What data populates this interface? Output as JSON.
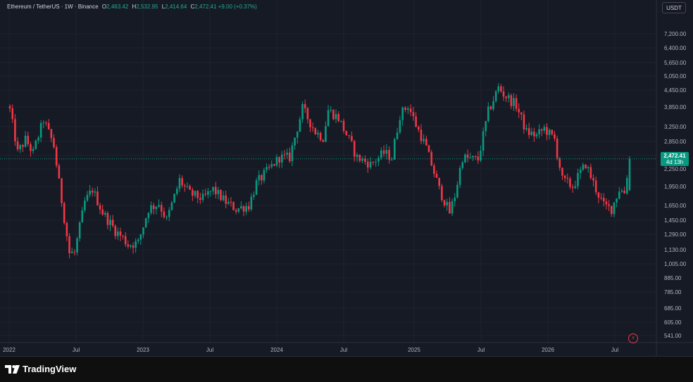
{
  "header": {
    "symbol_title": "Ethereum / TetherUS · 1W · Binance",
    "ohlc": [
      {
        "label": "O",
        "value": "2,463.42"
      },
      {
        "label": "H",
        "value": "2,532.95"
      },
      {
        "label": "L",
        "value": "2,414.64"
      },
      {
        "label": "C",
        "value": "2,472.41"
      }
    ],
    "change": "+9.00 (+0.37%)",
    "currency_button": "USDT"
  },
  "last_price": {
    "value": "2,472.41",
    "countdown": "4d 13h"
  },
  "footer": {
    "brand": "TradingView"
  },
  "icons": {
    "logo": "tradingview-logo-icon",
    "alert": "alert-lightning-icon"
  },
  "colors": {
    "background": "#161a25",
    "up": "#089981",
    "down": "#f23645",
    "grid": "#1e222d",
    "text": "#b2b5be"
  },
  "chart_data": {
    "type": "candlestick",
    "scale": "log",
    "interval": "1W",
    "y_ticks": [
      "7,200.00",
      "6,400.00",
      "5,650.00",
      "5,050.00",
      "4,450.00",
      "3,850.00",
      "3,250.00",
      "2,850.00",
      "2,550.00",
      "2,250.00",
      "1,950.00",
      "1,650.00",
      "1,450.00",
      "1,290.00",
      "1,130.00",
      "1,005.00",
      "885.00",
      "785.00",
      "685.00",
      "605.00",
      "541.00"
    ],
    "x_ticks": [
      "2022",
      "Jul",
      "2023",
      "Jul",
      "2024",
      "Jul",
      "2025",
      "Jul",
      "2026",
      "Jul"
    ],
    "ylim": [
      520,
      8000
    ],
    "grid": true,
    "close_path": [
      [
        "2022-01-03",
        3750
      ],
      [
        "2022-01-24",
        2600
      ],
      [
        "2022-02-14",
        2900
      ],
      [
        "2022-03-07",
        2600
      ],
      [
        "2022-04-04",
        3450
      ],
      [
        "2022-05-02",
        2750
      ],
      [
        "2022-05-16",
        2000
      ],
      [
        "2022-06-13",
        1100
      ],
      [
        "2022-06-27",
        1100
      ],
      [
        "2022-07-25",
        1700
      ],
      [
        "2022-08-15",
        1900
      ],
      [
        "2022-09-12",
        1550
      ],
      [
        "2022-10-17",
        1330
      ],
      [
        "2022-11-07",
        1250
      ],
      [
        "2022-11-21",
        1180
      ],
      [
        "2022-12-19",
        1200
      ],
      [
        "2023-01-16",
        1600
      ],
      [
        "2023-02-13",
        1680
      ],
      [
        "2023-03-06",
        1450
      ],
      [
        "2023-04-10",
        2050
      ],
      [
        "2023-05-08",
        1830
      ],
      [
        "2023-06-12",
        1750
      ],
      [
        "2023-07-10",
        1900
      ],
      [
        "2023-08-14",
        1700
      ],
      [
        "2023-09-11",
        1600
      ],
      [
        "2023-10-16",
        1650
      ],
      [
        "2023-11-06",
        2000
      ],
      [
        "2023-12-11",
        2250
      ],
      [
        "2024-01-08",
        2500
      ],
      [
        "2024-02-05",
        2500
      ],
      [
        "2024-03-11",
        3800
      ],
      [
        "2024-04-15",
        3100
      ],
      [
        "2024-05-06",
        2950
      ],
      [
        "2024-05-20",
        3750
      ],
      [
        "2024-06-17",
        3500
      ],
      [
        "2024-08-05",
        2500
      ],
      [
        "2024-09-09",
        2350
      ],
      [
        "2024-10-14",
        2600
      ],
      [
        "2024-11-04",
        2500
      ],
      [
        "2024-11-25",
        3600
      ],
      [
        "2024-12-16",
        3900
      ],
      [
        "2025-01-06",
        3300
      ],
      [
        "2025-02-03",
        2700
      ],
      [
        "2025-03-10",
        1900
      ],
      [
        "2025-04-07",
        1550
      ],
      [
        "2025-04-21",
        1800
      ],
      [
        "2025-05-12",
        2500
      ],
      [
        "2025-06-23",
        2450
      ],
      [
        "2025-07-21",
        3700
      ],
      [
        "2025-08-18",
        4550
      ],
      [
        "2025-09-01",
        4300
      ],
      [
        "2025-10-06",
        3900
      ],
      [
        "2025-11-03",
        3100
      ],
      [
        "2025-12-01",
        3000
      ],
      [
        "2025-12-22",
        3200
      ],
      [
        "2026-01-19",
        2900
      ],
      [
        "2026-02-09",
        2050
      ],
      [
        "2026-03-09",
        1950
      ],
      [
        "2026-04-13",
        2350
      ],
      [
        "2026-05-11",
        1900
      ],
      [
        "2026-06-01",
        1650
      ],
      [
        "2026-06-22",
        1600
      ],
      [
        "2026-07-13",
        1900
      ],
      [
        "2026-07-27",
        1850
      ],
      [
        "2026-08-10",
        2472
      ]
    ]
  }
}
